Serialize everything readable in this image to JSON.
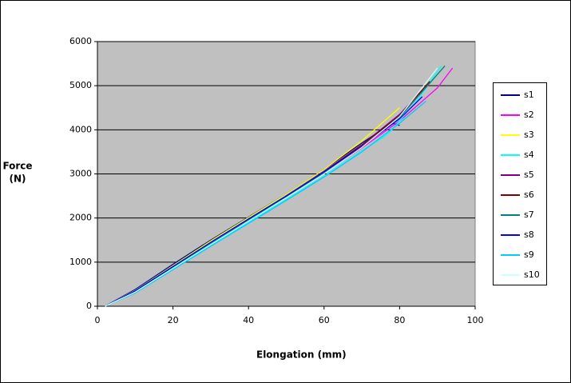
{
  "chart_data": {
    "type": "line",
    "xlabel": "Elongation  (mm)",
    "ylabel": [
      "Force",
      "(N)"
    ],
    "xlim": [
      0,
      100
    ],
    "xticks": [
      0,
      20,
      40,
      60,
      80,
      100
    ],
    "ylim": [
      0,
      6000
    ],
    "yticks": [
      0,
      1000,
      2000,
      3000,
      4000,
      5000,
      6000
    ],
    "grid": true,
    "legend": "right",
    "background": "#c0c0c0",
    "series": [
      {
        "name": "s1",
        "color": "#000080",
        "x": [
          2,
          10,
          20,
          30,
          40,
          50,
          60,
          70,
          78,
          80
        ],
        "values": [
          0,
          380,
          950,
          1500,
          2020,
          2540,
          3100,
          3700,
          4150,
          4100
        ]
      },
      {
        "name": "s2",
        "color": "#ff00ff",
        "x": [
          2,
          10,
          20,
          30,
          40,
          50,
          60,
          70,
          80,
          90,
          94
        ],
        "values": [
          0,
          330,
          880,
          1420,
          1950,
          2470,
          3010,
          3590,
          4200,
          4950,
          5400
        ]
      },
      {
        "name": "s3",
        "color": "#ffff00",
        "x": [
          2,
          10,
          20,
          30,
          40,
          50,
          60,
          70,
          80
        ],
        "values": [
          0,
          360,
          920,
          1480,
          2010,
          2540,
          3100,
          3750,
          4500
        ]
      },
      {
        "name": "s4",
        "color": "#00ffff",
        "x": [
          2,
          10,
          20,
          30,
          40,
          50,
          60,
          70,
          76,
          78,
          85,
          91
        ],
        "values": [
          0,
          310,
          850,
          1380,
          1900,
          2420,
          2950,
          3520,
          3850,
          4000,
          4700,
          5450
        ]
      },
      {
        "name": "s5",
        "color": "#800080",
        "x": [
          2,
          10,
          20,
          30,
          40,
          50,
          60,
          70,
          80,
          86
        ],
        "values": [
          0,
          340,
          890,
          1440,
          1970,
          2500,
          3060,
          3660,
          4350,
          4900
        ]
      },
      {
        "name": "s6",
        "color": "#800000",
        "x": [
          2,
          10,
          20,
          30,
          40,
          50,
          60,
          70,
          80,
          88
        ],
        "values": [
          0,
          345,
          895,
          1445,
          1975,
          2500,
          3050,
          3650,
          4320,
          5100
        ]
      },
      {
        "name": "s7",
        "color": "#008080",
        "x": [
          2,
          10,
          20,
          30,
          40,
          50,
          60,
          70,
          80,
          92
        ],
        "values": [
          0,
          340,
          880,
          1430,
          1960,
          2480,
          3030,
          3620,
          4280,
          5450
        ]
      },
      {
        "name": "s8",
        "color": "#0000ff",
        "x": [
          2,
          10,
          20,
          30,
          40,
          50,
          60,
          70,
          80,
          86
        ],
        "values": [
          0,
          350,
          900,
          1450,
          1980,
          2500,
          3050,
          3620,
          4250,
          4750
        ]
      },
      {
        "name": "s9",
        "color": "#00ccff",
        "x": [
          2,
          10,
          20,
          30,
          40,
          50,
          60,
          70,
          80,
          87
        ],
        "values": [
          0,
          300,
          830,
          1360,
          1880,
          2400,
          2930,
          3500,
          4150,
          4650
        ]
      },
      {
        "name": "s10",
        "color": "#ccffff",
        "x": [
          2,
          10,
          20,
          30,
          40,
          50,
          60,
          70,
          80,
          90
        ],
        "values": [
          0,
          320,
          860,
          1400,
          1930,
          2460,
          3000,
          3600,
          4300,
          5400
        ]
      }
    ]
  }
}
